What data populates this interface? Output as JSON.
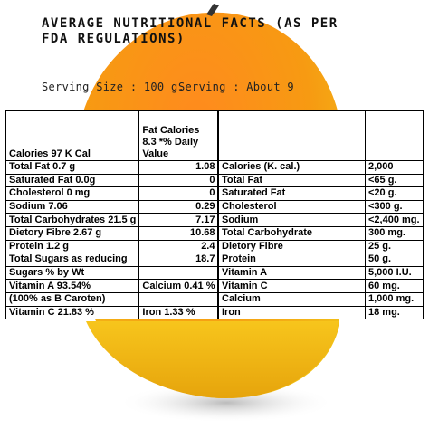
{
  "header": {
    "title": "AVERAGE NUTRITIONAL FACTS (AS PER FDA REGULATIONS)",
    "serving_size": "Serving Size : 100 g.",
    "servings": "Serving : About 9"
  },
  "left_table": {
    "header": [
      "Calories 97 K Cal",
      "Fat Calories 8.3 *% Daily Value"
    ],
    "rows": [
      [
        "Total Fat 0.7 g",
        "1.08"
      ],
      [
        "Saturated Fat 0.0g",
        "0"
      ],
      [
        "Cholesterol 0 mg",
        "0"
      ],
      [
        "Sodium 7.06",
        "0.29"
      ],
      [
        "Total Carbohydrates 21.5 g",
        "7.17"
      ],
      [
        "Dietory Fibre 2.67 g",
        "10.68"
      ],
      [
        "Protein 1.2 g",
        "2.4"
      ],
      [
        "Total Sugars as reducing",
        "18.7"
      ],
      [
        "Sugars % by Wt",
        null
      ],
      [
        "Vitamin A 93.54%",
        "Calcium 0.41 %"
      ],
      [
        "(100% as B Caroten)",
        null
      ],
      [
        "Vitamin C 21.83 %",
        "Iron 1.33 %"
      ]
    ]
  },
  "right_table": {
    "rows": [
      [
        "Calories (K. cal.)",
        "2,000"
      ],
      [
        "Total Fat",
        "<65 g."
      ],
      [
        "Saturated Fat",
        "<20 g."
      ],
      [
        "Cholesterol",
        "<300 g."
      ],
      [
        "Sodium",
        "<2,400 mg."
      ],
      [
        "Total Carbohydrate",
        "300 mg."
      ],
      [
        "Dietory Fibre",
        "25 g."
      ],
      [
        "Protein",
        "50 g."
      ],
      [
        "Vitamin A",
        "5,000 I.U."
      ],
      [
        "Vitamin C",
        "60 mg."
      ],
      [
        "Calcium",
        "1,000 mg."
      ],
      [
        "Iron",
        "18 mg."
      ]
    ]
  }
}
